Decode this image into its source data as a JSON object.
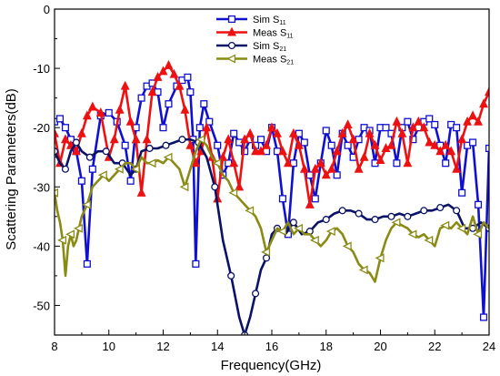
{
  "chart_data": {
    "type": "line",
    "xlabel": "Frequency(GHz)",
    "ylabel": "Scattering Parameters(dB)",
    "xlim": [
      8,
      24
    ],
    "ylim": [
      -55,
      0
    ],
    "x_ticks": [
      8,
      10,
      12,
      14,
      16,
      18,
      20,
      22,
      24
    ],
    "y_ticks": [
      0,
      -10,
      -20,
      -30,
      -40,
      -50
    ],
    "grid": false,
    "legend_position": "top-center",
    "series": [
      {
        "name": "Sim S11",
        "name_main": "Sim S",
        "name_sub": "11",
        "color": "#1010d0",
        "marker": "square",
        "x": [
          8.0,
          8.2,
          8.4,
          8.6,
          8.8,
          9.0,
          9.2,
          9.4,
          9.7,
          10.0,
          10.3,
          10.6,
          10.8,
          11.0,
          11.2,
          11.4,
          11.6,
          11.8,
          12.0,
          12.2,
          12.5,
          12.7,
          12.9,
          13.0,
          13.1,
          13.2,
          13.35,
          13.5,
          13.7,
          14.0,
          14.2,
          14.4,
          14.6,
          14.8,
          15.0,
          15.2,
          15.4,
          15.6,
          15.8,
          16.0,
          16.2,
          16.4,
          16.6,
          16.8,
          17.0,
          17.2,
          17.4,
          17.6,
          17.8,
          18.0,
          18.2,
          18.4,
          18.6,
          18.8,
          19.0,
          19.2,
          19.4,
          19.6,
          19.8,
          20.0,
          20.2,
          20.4,
          20.6,
          20.8,
          21.0,
          21.2,
          21.4,
          21.6,
          21.8,
          22.0,
          22.2,
          22.4,
          22.6,
          22.8,
          23.0,
          23.2,
          23.4,
          23.6,
          23.8,
          24.0
        ],
        "y": [
          -19,
          -18.5,
          -20,
          -22,
          -24,
          -29,
          -43,
          -27,
          -18,
          -17.5,
          -19,
          -23,
          -29,
          -20,
          -15,
          -13,
          -12.5,
          -14,
          -20,
          -16,
          -13,
          -12,
          -11.5,
          -14,
          -22,
          -43,
          -20,
          -16,
          -19,
          -23,
          -28,
          -26,
          -21,
          -22.5,
          -24,
          -22,
          -23,
          -22,
          -24,
          -20,
          -24,
          -32,
          -38,
          -26,
          -21,
          -22.5,
          -28,
          -32,
          -26,
          -20.5,
          -23,
          -28,
          -21,
          -23,
          -25,
          -22,
          -20,
          -20.5,
          -26,
          -20,
          -20,
          -21,
          -26,
          -20,
          -19,
          -22,
          -20,
          -19,
          -18.5,
          -19.5,
          -23,
          -26,
          -19.5,
          -20,
          -31,
          -23,
          -22.5,
          -33,
          -52,
          -23.5
        ]
      },
      {
        "name": "Meas S11",
        "name_main": "Meas S",
        "name_sub": "11",
        "color": "#ee1111",
        "marker": "triangle-up",
        "x": [
          8.0,
          8.2,
          8.4,
          8.6,
          8.8,
          9.0,
          9.2,
          9.4,
          9.7,
          10.0,
          10.2,
          10.4,
          10.6,
          10.8,
          11.0,
          11.2,
          11.4,
          11.6,
          11.8,
          12.0,
          12.2,
          12.4,
          12.6,
          12.8,
          13.0,
          13.2,
          13.4,
          13.6,
          13.8,
          14.0,
          14.2,
          14.4,
          14.6,
          14.8,
          15.0,
          15.2,
          15.4,
          15.6,
          15.8,
          16.0,
          16.2,
          16.4,
          16.6,
          16.8,
          17.0,
          17.2,
          17.4,
          17.6,
          17.8,
          18.0,
          18.2,
          18.4,
          18.6,
          18.8,
          19.0,
          19.2,
          19.4,
          19.6,
          19.8,
          20.0,
          20.2,
          20.4,
          20.6,
          20.8,
          21.0,
          21.2,
          21.4,
          21.6,
          21.8,
          22.0,
          22.2,
          22.4,
          22.6,
          22.8,
          23.0,
          23.2,
          23.4,
          23.6,
          23.8,
          24.0
        ],
        "y": [
          -21,
          -26,
          -22,
          -23,
          -24,
          -21,
          -18,
          -16.5,
          -17.5,
          -25,
          -22,
          -17,
          -13,
          -19,
          -22,
          -31,
          -22,
          -14,
          -11.5,
          -10.5,
          -9.5,
          -11,
          -13,
          -17,
          -23,
          -26,
          -24,
          -20,
          -25,
          -32,
          -25,
          -22,
          -26,
          -30,
          -22,
          -21,
          -24,
          -24,
          -23,
          -20,
          -21,
          -24,
          -26,
          -21,
          -23,
          -27,
          -33,
          -27,
          -26,
          -28,
          -27,
          -24,
          -21,
          -19.5,
          -22,
          -27,
          -25,
          -21,
          -23,
          -25.5,
          -23.5,
          -23,
          -19,
          -21,
          -26,
          -20,
          -19,
          -20,
          -22.5,
          -23,
          -24,
          -23,
          -24,
          -27,
          -22,
          -19,
          -18,
          -19,
          -16,
          -14
        ]
      },
      {
        "name": "Sim S21",
        "name_main": "Sim S",
        "name_sub": "21",
        "color": "#0a1266",
        "marker": "circle",
        "x": [
          8.0,
          8.2,
          8.4,
          8.6,
          8.8,
          9.0,
          9.3,
          9.6,
          9.9,
          10.2,
          10.5,
          10.8,
          11.0,
          11.2,
          11.5,
          11.8,
          12.1,
          12.4,
          12.7,
          13.0,
          13.3,
          13.6,
          13.9,
          14.2,
          14.5,
          14.8,
          15.0,
          15.2,
          15.4,
          15.6,
          15.8,
          16.0,
          16.2,
          16.5,
          16.8,
          17.1,
          17.4,
          17.7,
          18.0,
          18.3,
          18.6,
          18.9,
          19.2,
          19.5,
          19.8,
          20.1,
          20.4,
          20.7,
          21.0,
          21.3,
          21.6,
          21.9,
          22.2,
          22.5,
          22.8,
          23.1,
          23.4,
          23.7,
          24.0
        ],
        "y": [
          -24,
          -26,
          -27,
          -24,
          -22.5,
          -24,
          -25,
          -24,
          -24,
          -26,
          -26,
          -28,
          -27,
          -24,
          -23.5,
          -23.5,
          -23,
          -22.5,
          -22,
          -22,
          -22.5,
          -25,
          -30,
          -39,
          -45,
          -52,
          -55,
          -52,
          -48,
          -44,
          -42,
          -38,
          -37,
          -38,
          -36,
          -38,
          -37.5,
          -36,
          -35.5,
          -34.5,
          -34,
          -34,
          -34.5,
          -35.5,
          -35.5,
          -35,
          -35,
          -34.5,
          -35,
          -34.5,
          -34,
          -34,
          -33.5,
          -33,
          -34,
          -37,
          -37,
          -36,
          -37
        ]
      },
      {
        "name": "Meas S21",
        "name_main": "Meas S",
        "name_sub": "21",
        "color": "#8a8a14",
        "marker": "triangle-left",
        "x": [
          8.0,
          8.1,
          8.2,
          8.3,
          8.4,
          8.5,
          8.6,
          8.7,
          8.8,
          8.9,
          9.0,
          9.1,
          9.2,
          9.4,
          9.6,
          9.8,
          10.0,
          10.2,
          10.4,
          10.6,
          10.8,
          11.0,
          11.2,
          11.4,
          11.6,
          11.8,
          12.0,
          12.2,
          12.4,
          12.6,
          12.8,
          13.0,
          13.2,
          13.4,
          13.6,
          13.8,
          14.0,
          14.2,
          14.4,
          14.6,
          14.8,
          15.0,
          15.2,
          15.4,
          15.6,
          15.8,
          16.0,
          16.2,
          16.4,
          16.6,
          16.8,
          17.0,
          17.2,
          17.4,
          17.6,
          17.8,
          18.0,
          18.2,
          18.4,
          18.6,
          18.8,
          19.0,
          19.2,
          19.4,
          19.6,
          19.8,
          20.0,
          20.2,
          20.4,
          20.6,
          20.8,
          21.0,
          21.2,
          21.4,
          21.6,
          21.8,
          22.0,
          22.2,
          22.4,
          22.6,
          22.8,
          23.0,
          23.2,
          23.4,
          23.6,
          23.8,
          24.0
        ],
        "y": [
          -31,
          -34,
          -36,
          -39,
          -45,
          -40,
          -38,
          -40,
          -39,
          -37,
          -35,
          -34,
          -33,
          -30,
          -29,
          -28,
          -29,
          -28,
          -27,
          -26,
          -26,
          -27,
          -25,
          -26,
          -26,
          -25.5,
          -26,
          -25,
          -26,
          -27,
          -30,
          -27,
          -24,
          -22,
          -23,
          -25,
          -26,
          -28,
          -29,
          -31,
          -32,
          -33,
          -34,
          -35,
          -37,
          -41,
          -39,
          -37,
          -37.5,
          -36,
          -38,
          -37,
          -38,
          -38,
          -39,
          -40,
          -39,
          -37.5,
          -37,
          -38,
          -40,
          -41,
          -43,
          -44,
          -44.5,
          -46,
          -42,
          -39,
          -37,
          -36,
          -36.5,
          -37,
          -38,
          -38.5,
          -38,
          -39,
          -40,
          -37,
          -36.5,
          -37,
          -36,
          -37,
          -38,
          -35,
          -38,
          -36,
          -37
        ]
      }
    ]
  }
}
